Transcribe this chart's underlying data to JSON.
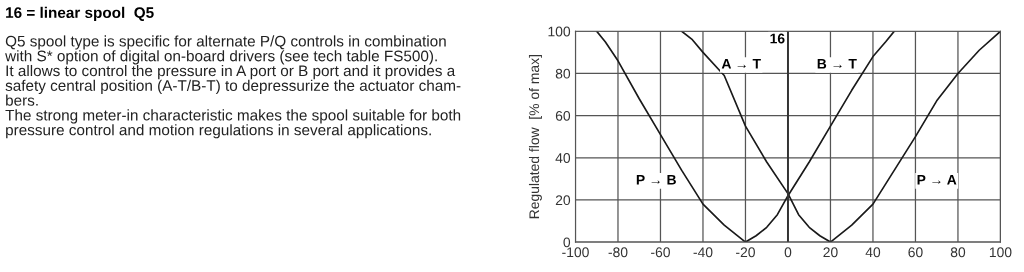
{
  "chart_data": {
    "type": "line",
    "title": "16 = linear spool  Q5",
    "ylabel": "Regulated flow  [% of max]",
    "series": [
      {
        "color": "#1a1a1a",
        "x": [
          -90,
          -86,
          -80,
          -70,
          -60,
          -50,
          -40,
          -30,
          -25,
          -20,
          -15,
          -10,
          -5,
          0,
          10,
          20,
          30,
          40,
          46,
          50
        ],
        "values": [
          100,
          95,
          86,
          68,
          51,
          34,
          18,
          8,
          4,
          0,
          3,
          7,
          13,
          22,
          38,
          55,
          72,
          88,
          95,
          100
        ]
      },
      {
        "color": "#1a1a1a",
        "x": [
          -50,
          -45,
          -40,
          -30,
          -20,
          -10,
          0,
          5,
          10,
          15,
          20,
          25,
          30,
          40,
          50,
          60,
          70,
          80,
          90,
          100
        ],
        "values": [
          100,
          96,
          90,
          79,
          55,
          38,
          23,
          13,
          7,
          3,
          0,
          4,
          8,
          18,
          34,
          50,
          67,
          80,
          91,
          100
        ]
      }
    ],
    "xlim": [
      -100,
      100
    ],
    "ylim": [
      0,
      100
    ],
    "xticks": [
      -100,
      -80,
      -60,
      -40,
      -20,
      0,
      20,
      40,
      60,
      80,
      100
    ],
    "yticks": [
      0,
      20,
      40,
      60,
      80,
      100
    ],
    "grid": true,
    "legend": false,
    "ref_lines": [
      {
        "axis": "x",
        "value": 0,
        "color": "#333333"
      }
    ],
    "annotations": [
      {
        "text": "16",
        "x": -5,
        "y": 96
      },
      {
        "text": "A → T",
        "x": -22,
        "y": 84
      },
      {
        "text": "B → T",
        "x": 23,
        "y": 84
      },
      {
        "text": "P → B",
        "x": -62,
        "y": 29
      },
      {
        "text": "P → A",
        "x": 70,
        "y": 29
      },
      "Q5 spool type is specific for alternate P/Q controls in combination\nwith S* option of digital on-board drivers (see tech table FS500).\nIt allows to control the pressure in A port or B port and it provides a\nsafety central position (A-T/B-T) to depressurize the actuator cham-\nbers.\nThe strong meter-in characteristic makes the spool suitable for both\npressure control and motion regulations in several applications."
    ]
  }
}
